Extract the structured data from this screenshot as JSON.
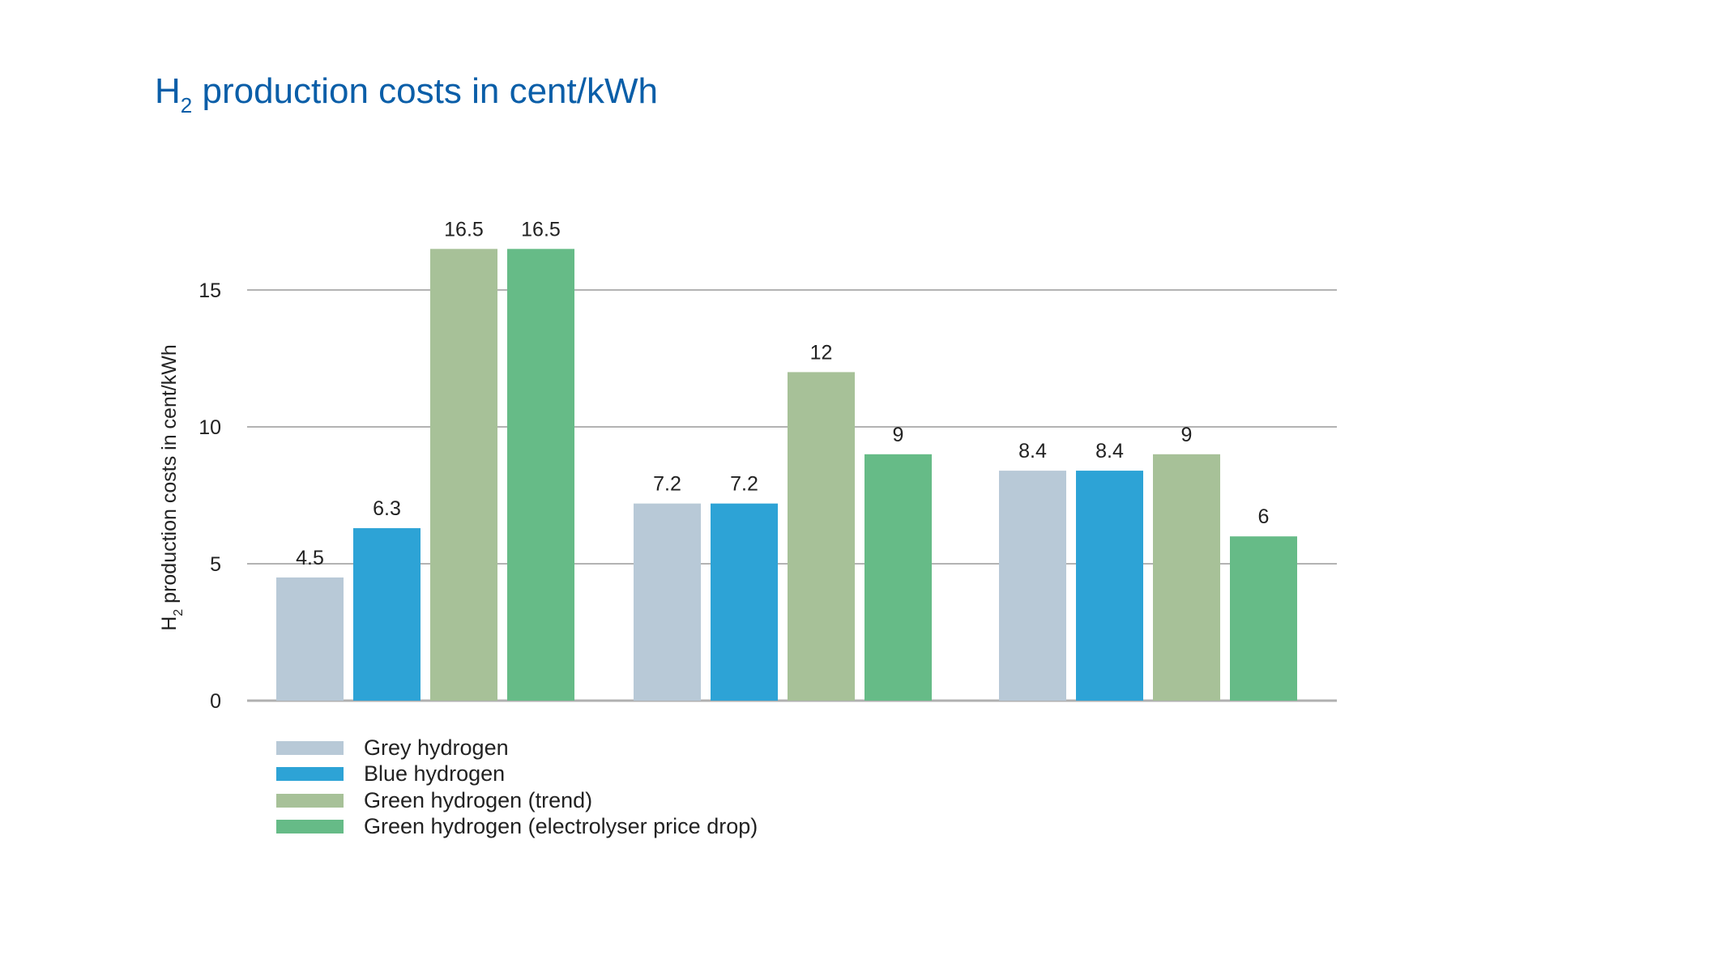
{
  "chart_data": {
    "type": "bar",
    "title": {
      "main": "H",
      "sub": "2",
      "rest": " production costs in cent/kWh"
    },
    "ylabel": {
      "main": "H",
      "sub": "2",
      "rest": " production costs in cent/kWh"
    },
    "xlabel": "",
    "ylim": [
      0,
      16.5
    ],
    "yticks": [
      0,
      5,
      10,
      15
    ],
    "grid": true,
    "legend_position": "bottom-left",
    "categories": [
      "",
      "",
      ""
    ],
    "series": [
      {
        "name": "Grey hydrogen",
        "color": "#b8c9d7",
        "values": [
          4.5,
          7.2,
          8.4
        ]
      },
      {
        "name": "Blue hydrogen",
        "color": "#2da3d6",
        "values": [
          6.3,
          7.2,
          8.4
        ]
      },
      {
        "name": "Green hydrogen (trend)",
        "color": "#a7c198",
        "values": [
          16.5,
          12,
          9
        ]
      },
      {
        "name": "Green hydrogen (electrolyser price drop)",
        "color": "#66bb87",
        "values": [
          16.5,
          9,
          6
        ]
      }
    ]
  }
}
